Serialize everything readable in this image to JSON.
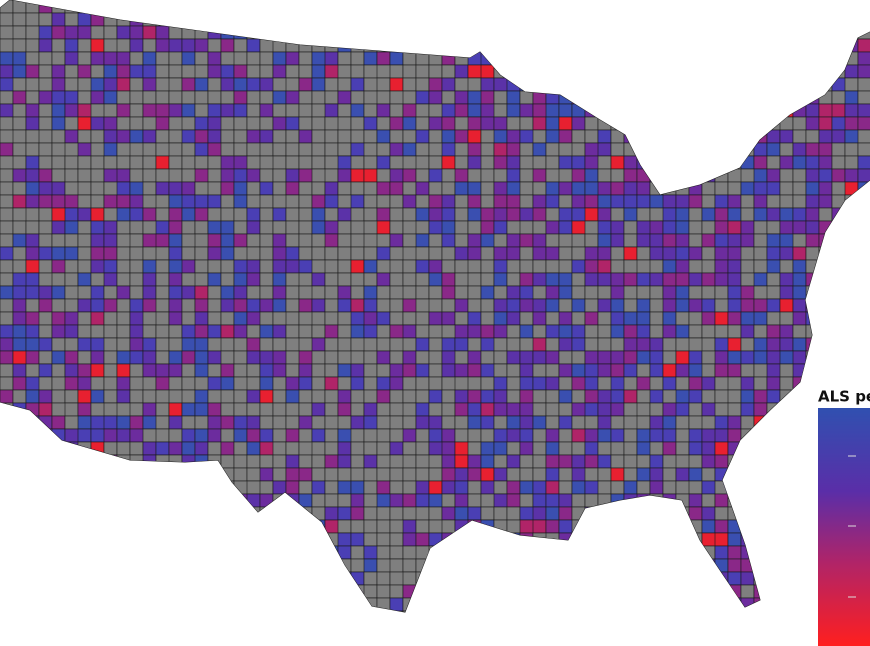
{
  "legend": {
    "title": "ALS pen"
  }
}
